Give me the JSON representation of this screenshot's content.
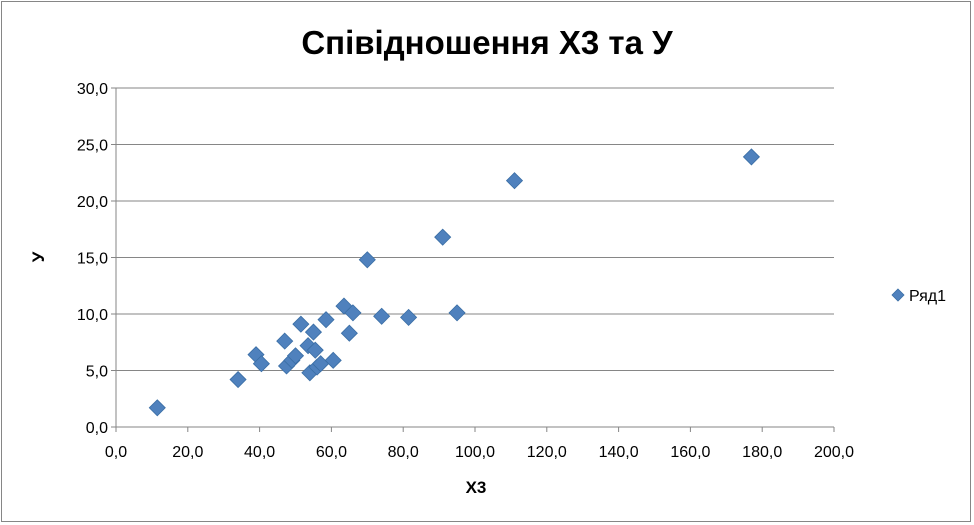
{
  "chart_data": {
    "type": "scatter",
    "title": "Співідношення Х3 та У",
    "xlabel": "Х3",
    "ylabel": "У",
    "xlim": [
      0,
      200
    ],
    "ylim": [
      0,
      30
    ],
    "x_ticks": [
      "0,0",
      "20,0",
      "40,0",
      "60,0",
      "80,0",
      "100,0",
      "120,0",
      "140,0",
      "160,0",
      "180,0",
      "200,0"
    ],
    "y_ticks": [
      "0,0",
      "5,0",
      "10,0",
      "15,0",
      "20,0",
      "25,0",
      "30,0"
    ],
    "grid": "horizontal",
    "legend_position": "right",
    "marker": "diamond",
    "color": "#4F81BD",
    "series": [
      {
        "name": "Ряд1",
        "points": [
          [
            11.5,
            1.7
          ],
          [
            34.0,
            4.2
          ],
          [
            39.0,
            6.4
          ],
          [
            40.5,
            5.6
          ],
          [
            47.0,
            7.6
          ],
          [
            47.5,
            5.4
          ],
          [
            49.0,
            5.9
          ],
          [
            50.0,
            6.3
          ],
          [
            51.5,
            9.1
          ],
          [
            53.5,
            7.2
          ],
          [
            54.0,
            4.8
          ],
          [
            55.0,
            8.4
          ],
          [
            55.5,
            6.8
          ],
          [
            56.0,
            5.3
          ],
          [
            57.0,
            5.6
          ],
          [
            58.5,
            9.5
          ],
          [
            60.5,
            5.9
          ],
          [
            63.5,
            10.7
          ],
          [
            65.0,
            8.3
          ],
          [
            66.0,
            10.1
          ],
          [
            70.0,
            14.8
          ],
          [
            74.0,
            9.8
          ],
          [
            81.5,
            9.7
          ],
          [
            91.0,
            16.8
          ],
          [
            95.0,
            10.1
          ],
          [
            111.0,
            21.8
          ],
          [
            177.0,
            23.9
          ]
        ]
      }
    ]
  }
}
